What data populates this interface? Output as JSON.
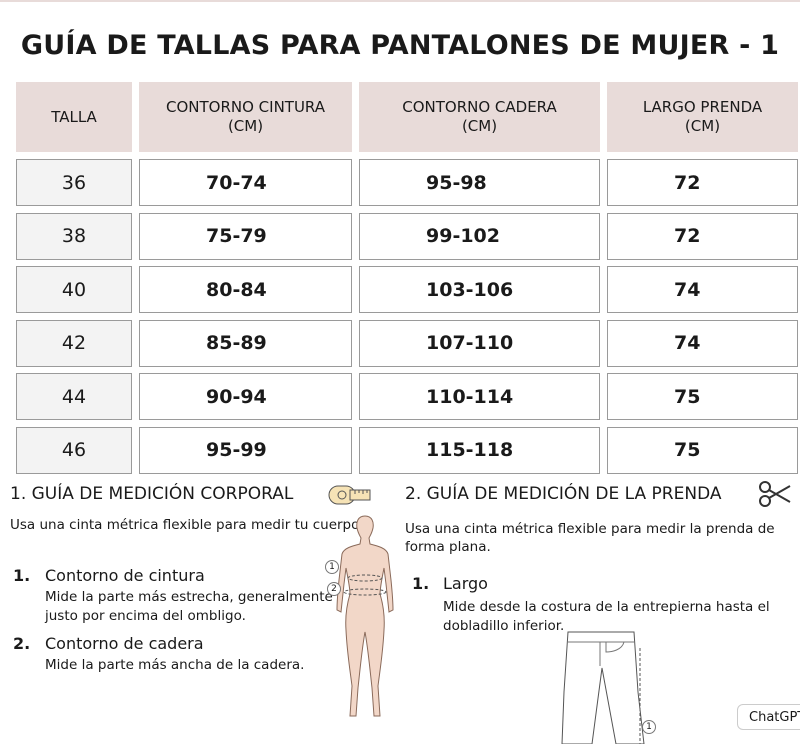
{
  "title": "GUÍA DE TALLAS PARA PANTALONES DE MUJER - 1",
  "table": {
    "headers": [
      "TALLA",
      "CONTORNO CINTURA\n(CM)",
      "CONTORNO CADERA\n(CM)",
      "LARGO PRENDA\n(CM)"
    ],
    "rows": [
      [
        "36",
        "70-74",
        "95-98",
        "72"
      ],
      [
        "38",
        "75-79",
        "99-102",
        "72"
      ],
      [
        "40",
        "80-84",
        "103-106",
        "74"
      ],
      [
        "42",
        "85-89",
        "107-110",
        "74"
      ],
      [
        "44",
        "90-94",
        "110-114",
        "75"
      ],
      [
        "46",
        "95-99",
        "115-118",
        "75"
      ]
    ]
  },
  "body_guide": {
    "heading": "1. GUÍA DE MEDICIÓN CORPORAL",
    "intro": "Usa una cinta métrica flexible para medir tu cuerpo.",
    "items": [
      {
        "number": "1.",
        "title": "Contorno de cintura",
        "text": "Mide la parte más estrecha, generalmente justo por encima del ombligo."
      },
      {
        "number": "2.",
        "title": "Contorno de cadera",
        "text": "Mide la parte más ancha de la cadera."
      }
    ],
    "figure_labels": [
      "1",
      "2"
    ]
  },
  "garment_guide": {
    "heading": "2. GUÍA DE MEDICIÓN DE LA PRENDA",
    "intro": "Usa una cinta métrica flexible para medir la prenda de forma plana.",
    "items": [
      {
        "number": "1.",
        "title": "Largo",
        "text": "Mide desde la costura de la entrepierna hasta el dobladillo inferior."
      }
    ],
    "figure_labels": [
      "1"
    ]
  },
  "badge": "ChatGPT"
}
